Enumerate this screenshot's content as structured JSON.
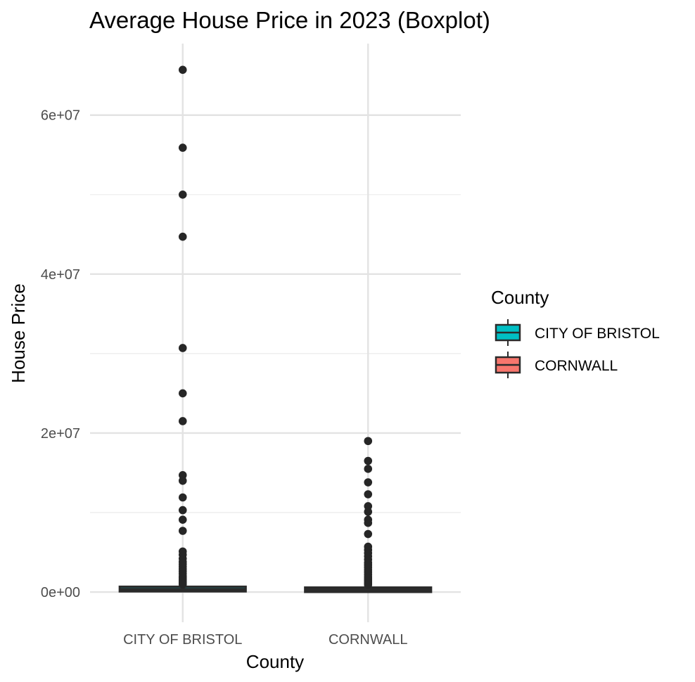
{
  "chart_data": {
    "type": "boxplot",
    "title": "Average House Price in 2023 (Boxplot)",
    "xlabel": "County",
    "ylabel": "House Price",
    "categories": [
      "CITY OF BRISTOL",
      "CORNWALL"
    ],
    "ylim": [
      -3800000,
      69000000
    ],
    "y_ticks": [
      0,
      20000000,
      40000000,
      60000000
    ],
    "y_tick_labels": [
      "0e+00",
      "2e+07",
      "4e+07",
      "6e+07"
    ],
    "y_minor_ticks": [
      10000000,
      30000000,
      50000000
    ],
    "grid": true,
    "legend": {
      "title": "County",
      "position": "right",
      "entries": [
        "CITY OF BRISTOL",
        "CORNWALL"
      ]
    },
    "series": [
      {
        "category": "CITY OF BRISTOL",
        "color": "#00BFC4",
        "box": {
          "min": 0,
          "q1": 250000,
          "median": 350000,
          "q3": 500000,
          "max": 900000
        },
        "outliers": [
          65700000,
          55900000,
          50000000,
          44700000,
          30700000,
          25000000,
          21500000,
          14700000,
          14000000,
          11900000,
          10300000,
          9100000,
          7700000,
          5100000,
          4700000,
          4200000,
          3800000,
          3500000,
          3200000,
          2900000,
          2600000,
          2300000,
          2000000,
          1800000,
          1600000,
          1400000,
          1200000,
          1050000,
          950000
        ]
      },
      {
        "category": "CORNWALL",
        "color": "#F8766D",
        "box": {
          "min": 0,
          "q1": 180000,
          "median": 280000,
          "q3": 400000,
          "max": 750000
        },
        "outliers": [
          19000000,
          16500000,
          15500000,
          13800000,
          12300000,
          10800000,
          10100000,
          9100000,
          8700000,
          7300000,
          5700000,
          5300000,
          4900000,
          4500000,
          4100000,
          3700000,
          3400000,
          3100000,
          2800000,
          2500000,
          2200000,
          1900000,
          1700000,
          1500000,
          1300000,
          1100000,
          900000
        ]
      }
    ]
  }
}
